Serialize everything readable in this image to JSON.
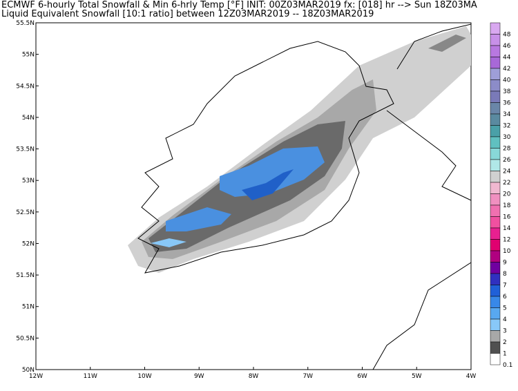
{
  "header": {
    "line1": "ECMWF 6-hourly Total Snowfall & Min 6-hrly Temp [°F] INIT: 00Z03MAR2019 fx: [018] hr --> Sun 18Z03MA",
    "line2": "Liquid Equivalent Snowfall [10:1 ratio] between 12Z03MAR2019 -- 18Z03MAR2019"
  },
  "map": {
    "lat_labels": [
      "55.5N",
      "55N",
      "54.5N",
      "54N",
      "53.5N",
      "53N",
      "52.5N",
      "52N",
      "51.5N",
      "51N",
      "50.5N",
      "50N"
    ],
    "lon_labels": [
      "12W",
      "11W",
      "10W",
      "9W",
      "8W",
      "7W",
      "6W",
      "5W",
      "4W"
    ]
  },
  "colorbar": {
    "labels": [
      "48",
      "46",
      "44",
      "42",
      "40",
      "38",
      "36",
      "34",
      "32",
      "30",
      "28",
      "26",
      "24",
      "22",
      "20",
      "18",
      "16",
      "14",
      "12",
      "10",
      "9",
      "8",
      "7",
      "6",
      "5",
      "4",
      "3",
      "2",
      "1",
      "0.1"
    ],
    "colors": [
      "#d9a8f0",
      "#c890e8",
      "#b878e0",
      "#a868d8",
      "#9e9ed8",
      "#8c8cc8",
      "#7a7ab8",
      "#6a86a8",
      "#5a8aa0",
      "#4aa0a8",
      "#60c0c0",
      "#88d8d8",
      "#b0e8e8",
      "#d0d0d0",
      "#f0b8d0",
      "#f090c0",
      "#f070b0",
      "#f050a0",
      "#e82090",
      "#e00070",
      "#b00080",
      "#7000a0",
      "#3030c0",
      "#2060d8",
      "#3888e8",
      "#58a8f0",
      "#88c8f8",
      "#a8a8a8",
      "#505050",
      "#ffffff"
    ]
  }
}
